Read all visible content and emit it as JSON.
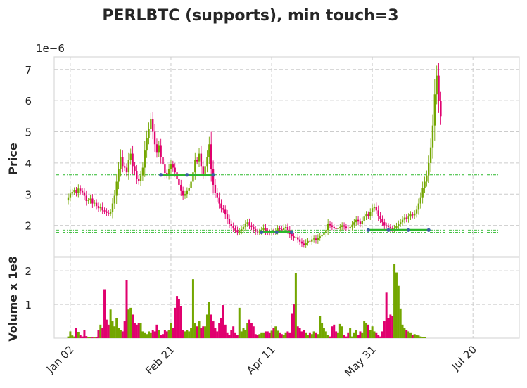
{
  "chart_data": {
    "type": "candlestick",
    "title": "PERLBTC (supports), min touch=3",
    "price_panel": {
      "ylabel": "Price",
      "offset_text": "1e−6",
      "ylim": [
        1.0,
        7.4
      ],
      "yticks": [
        2,
        3,
        4,
        5,
        6,
        7
      ],
      "ytick_labels": [
        "2",
        "3",
        "4",
        "5",
        "6",
        "7"
      ]
    },
    "volume_panel": {
      "ylabel": "Volume x 1e8",
      "ylim": [
        0,
        2.4
      ],
      "yticks": [
        1,
        2
      ],
      "ytick_labels": [
        "1",
        "2"
      ]
    },
    "x": {
      "tick_dates": [
        "2020-01-02",
        "2020-02-21",
        "2020-04-11",
        "2020-05-31",
        "2020-07-20"
      ],
      "tick_labels": [
        "Jan 02",
        "Feb 21",
        "Apr 11",
        "May 31",
        "Jul 20"
      ],
      "xlim": [
        "2019-12-25",
        "2020-08-12"
      ]
    },
    "colors": {
      "up": "#73a600",
      "down": "#e0006e",
      "support_line": "#2db82d",
      "support_marker": "#3d5fa3"
    },
    "grid": true,
    "closes": [
      2.9,
      3.02,
      3.07,
      3.12,
      3.04,
      3.18,
      3.1,
      3.06,
      2.95,
      2.78,
      2.8,
      2.86,
      2.7,
      2.72,
      2.62,
      2.55,
      2.6,
      2.48,
      2.45,
      2.4,
      2.38,
      2.42,
      2.7,
      2.95,
      3.4,
      3.8,
      4.2,
      3.9,
      3.85,
      3.7,
      4.1,
      4.3,
      3.9,
      3.75,
      3.5,
      3.42,
      3.6,
      3.85,
      4.4,
      4.8,
      5.1,
      5.4,
      5.0,
      4.6,
      4.35,
      4.55,
      4.2,
      3.95,
      3.68,
      3.62,
      3.8,
      3.95,
      3.85,
      3.7,
      3.5,
      3.3,
      3.1,
      2.95,
      3.0,
      3.1,
      3.2,
      3.4,
      3.7,
      4.1,
      4.05,
      4.3,
      3.9,
      3.66,
      3.9,
      4.2,
      4.6,
      3.8,
      3.3,
      3.05,
      2.9,
      2.7,
      2.55,
      2.5,
      2.35,
      2.2,
      2.05,
      1.98,
      1.9,
      1.85,
      1.78,
      1.82,
      1.88,
      1.95,
      2.05,
      2.1,
      2.0,
      1.95,
      1.88,
      1.8,
      1.78,
      1.8,
      1.85,
      1.92,
      1.82,
      1.78,
      1.76,
      1.8,
      1.78,
      1.82,
      1.9,
      1.88,
      1.85,
      1.92,
      1.95,
      1.85,
      1.72,
      1.65,
      1.6,
      1.62,
      1.55,
      1.48,
      1.42,
      1.38,
      1.45,
      1.5,
      1.48,
      1.55,
      1.58,
      1.52,
      1.6,
      1.65,
      1.7,
      1.75,
      1.85,
      2.05,
      2.0,
      1.95,
      1.9,
      1.88,
      1.9,
      1.95,
      2.0,
      1.96,
      1.92,
      1.9,
      1.95,
      2.02,
      2.1,
      2.18,
      2.12,
      2.05,
      2.15,
      2.28,
      2.35,
      2.3,
      2.42,
      2.55,
      2.6,
      2.48,
      2.3,
      2.2,
      2.1,
      2.0,
      1.98,
      1.95,
      1.9,
      1.88,
      1.92,
      1.98,
      2.05,
      2.1,
      2.18,
      2.25,
      2.2,
      2.28,
      2.35,
      2.32,
      2.38,
      2.5,
      2.7,
      2.9,
      3.2,
      3.4,
      3.6,
      4.0,
      4.5,
      5.2,
      6.2,
      6.8,
      6.0,
      5.5
    ],
    "opens": [
      2.8,
      2.9,
      3.02,
      3.07,
      3.12,
      3.04,
      3.18,
      3.1,
      3.06,
      2.95,
      2.78,
      2.8,
      2.86,
      2.7,
      2.72,
      2.62,
      2.55,
      2.6,
      2.48,
      2.45,
      2.4,
      2.38,
      2.42,
      2.7,
      2.95,
      3.4,
      3.8,
      4.2,
      3.9,
      3.85,
      3.7,
      4.1,
      4.3,
      3.9,
      3.75,
      3.5,
      3.42,
      3.6,
      3.85,
      4.4,
      4.8,
      5.1,
      5.4,
      5.0,
      4.6,
      4.35,
      4.55,
      4.2,
      3.95,
      3.68,
      3.62,
      3.8,
      3.95,
      3.85,
      3.7,
      3.5,
      3.3,
      3.1,
      2.95,
      3.0,
      3.1,
      3.2,
      3.4,
      3.7,
      4.1,
      4.05,
      4.3,
      3.9,
      3.66,
      3.9,
      4.2,
      4.6,
      3.8,
      3.3,
      3.05,
      2.9,
      2.7,
      2.55,
      2.5,
      2.35,
      2.2,
      2.05,
      1.98,
      1.9,
      1.85,
      1.78,
      1.82,
      1.88,
      1.95,
      2.05,
      2.1,
      2.0,
      1.95,
      1.88,
      1.8,
      1.78,
      1.8,
      1.85,
      1.92,
      1.82,
      1.78,
      1.76,
      1.8,
      1.78,
      1.82,
      1.9,
      1.88,
      1.85,
      1.92,
      1.95,
      1.85,
      1.72,
      1.65,
      1.6,
      1.62,
      1.55,
      1.48,
      1.42,
      1.38,
      1.45,
      1.5,
      1.48,
      1.55,
      1.58,
      1.52,
      1.6,
      1.65,
      1.7,
      1.75,
      1.85,
      2.05,
      2.0,
      1.95,
      1.9,
      1.88,
      1.9,
      1.95,
      2.0,
      1.96,
      1.92,
      1.9,
      1.95,
      2.02,
      2.1,
      2.18,
      2.12,
      2.05,
      2.15,
      2.28,
      2.35,
      2.3,
      2.42,
      2.55,
      2.6,
      2.48,
      2.3,
      2.2,
      2.1,
      2.0,
      1.98,
      1.95,
      1.9,
      1.88,
      1.92,
      1.98,
      2.05,
      2.1,
      2.18,
      2.25,
      2.2,
      2.28,
      2.35,
      2.32,
      2.38,
      2.5,
      2.7,
      2.9,
      3.2,
      3.4,
      3.6,
      4.0,
      4.5,
      5.2,
      6.2,
      6.8,
      6.0
    ],
    "volumes": [
      0.05,
      0.2,
      0.08,
      0.05,
      0.3,
      0.18,
      0.1,
      0.05,
      0.25,
      0.06,
      0.04,
      0.03,
      0.02,
      0.02,
      0.03,
      0.25,
      0.4,
      0.3,
      1.45,
      0.55,
      0.4,
      0.85,
      0.5,
      0.35,
      0.6,
      0.3,
      0.25,
      0.2,
      0.5,
      1.72,
      0.85,
      0.9,
      0.7,
      0.45,
      0.4,
      0.45,
      0.45,
      0.2,
      0.15,
      0.12,
      0.2,
      0.15,
      0.25,
      0.2,
      0.4,
      0.25,
      0.1,
      0.12,
      0.25,
      0.2,
      0.25,
      0.45,
      0.3,
      0.9,
      1.25,
      1.15,
      0.95,
      0.25,
      0.2,
      0.25,
      0.2,
      0.3,
      1.75,
      0.45,
      0.35,
      0.5,
      0.3,
      0.35,
      0.35,
      0.7,
      1.08,
      0.7,
      0.5,
      0.3,
      0.2,
      0.45,
      0.6,
      0.98,
      0.4,
      0.15,
      0.1,
      0.25,
      0.35,
      0.15,
      0.1,
      0.9,
      0.2,
      0.3,
      0.25,
      0.45,
      0.55,
      0.45,
      0.35,
      0.12,
      0.1,
      0.12,
      0.15,
      0.15,
      0.2,
      0.2,
      0.15,
      0.22,
      0.3,
      0.35,
      0.22,
      0.15,
      0.12,
      0.1,
      0.15,
      0.2,
      0.15,
      0.72,
      1.0,
      1.93,
      0.35,
      0.3,
      0.2,
      0.25,
      0.15,
      0.1,
      0.15,
      0.12,
      0.2,
      0.15,
      0.12,
      0.65,
      0.45,
      0.3,
      0.2,
      0.1,
      0.05,
      0.35,
      0.4,
      0.2,
      0.15,
      0.42,
      0.35,
      0.1,
      0.05,
      0.15,
      0.3,
      0.05,
      0.15,
      0.25,
      0.1,
      0.2,
      0.15,
      0.5,
      0.45,
      0.4,
      0.25,
      0.35,
      0.2,
      0.15,
      0.1,
      0.05,
      0.2,
      0.5,
      1.35,
      0.6,
      0.7,
      0.65,
      2.2,
      1.95,
      1.55,
      0.88,
      0.4,
      0.3,
      0.25,
      0.2,
      0.15,
      0.1,
      0.12,
      0.1,
      0.08,
      0.05,
      0.04,
      0.03
    ],
    "support_levels": [
      {
        "price": 3.62,
        "start": "2020-02-16",
        "end": "2020-03-13",
        "touches": 3
      },
      {
        "price": 1.78,
        "start": "2020-04-06",
        "end": "2020-04-21",
        "touches": 3
      },
      {
        "price": 1.85,
        "start": "2020-05-29",
        "end": "2020-06-28",
        "touches": 4
      }
    ],
    "guide_lines": [
      3.62,
      1.85,
      1.78
    ]
  }
}
